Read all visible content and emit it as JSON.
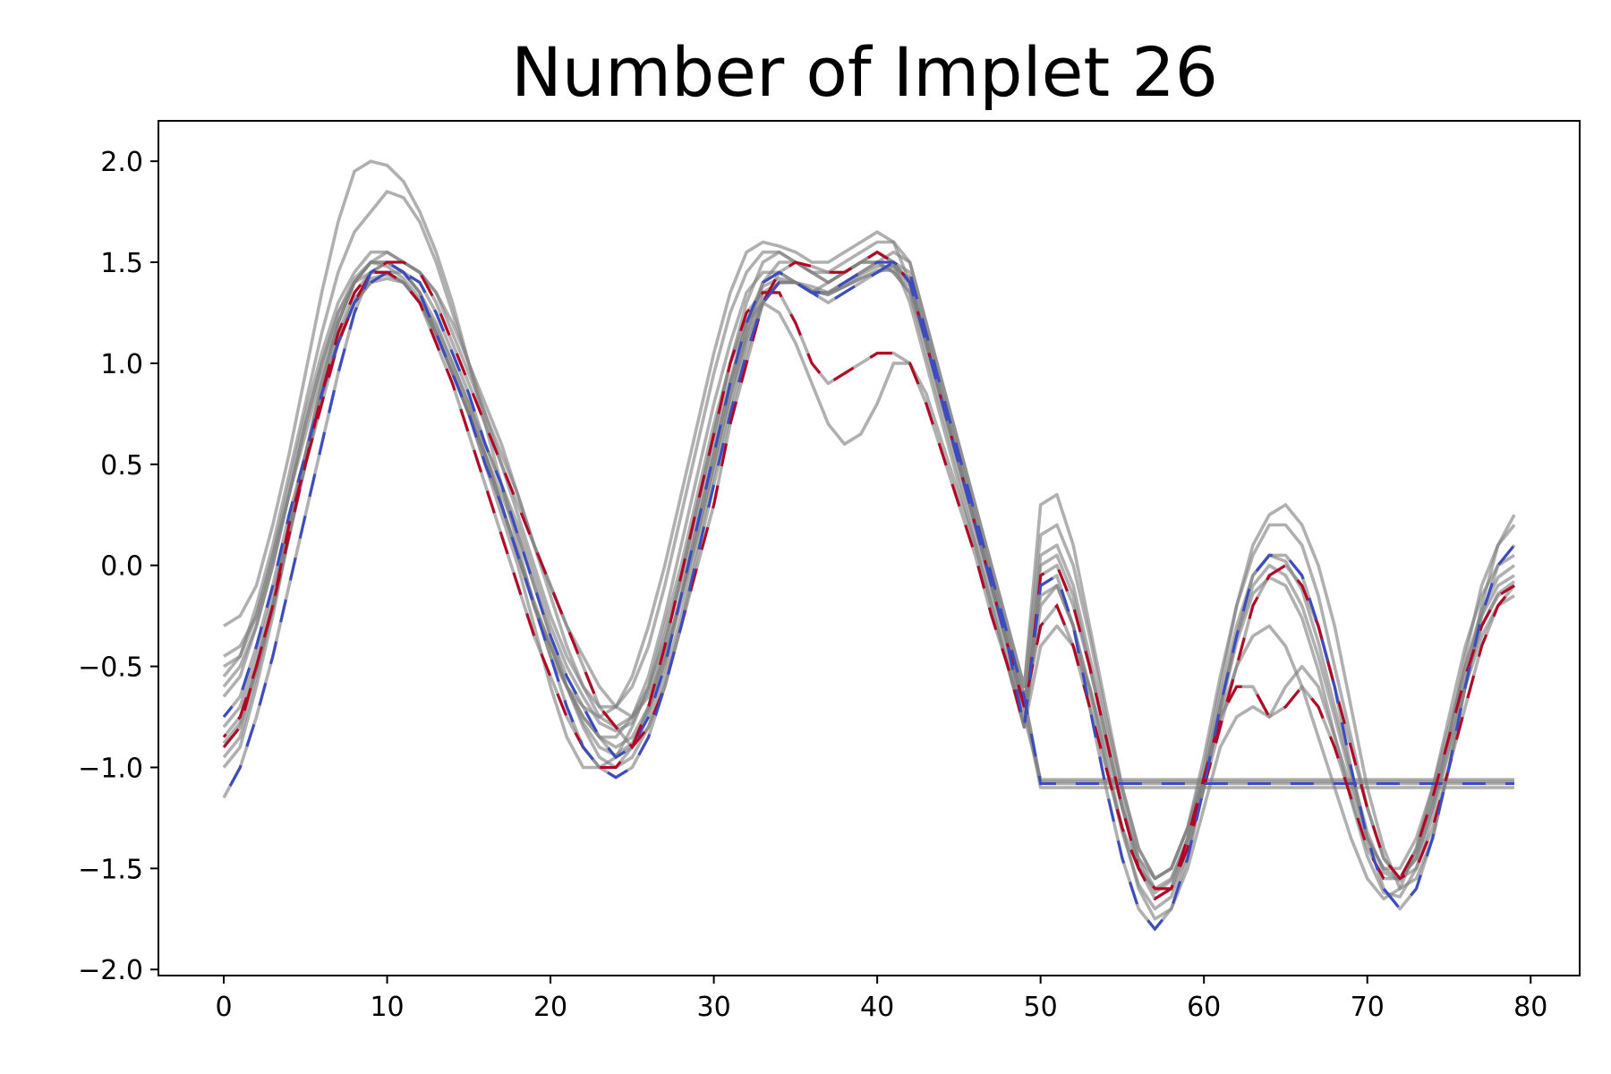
{
  "chart_data": {
    "type": "line",
    "title": "Number of Implet 26",
    "xlabel": "",
    "ylabel": "",
    "xlim": [
      -4,
      83
    ],
    "ylim": [
      -2.03,
      2.2
    ],
    "xticks": [
      0,
      10,
      20,
      30,
      40,
      50,
      60,
      70,
      80
    ],
    "yticks": [
      2.0,
      1.5,
      1.0,
      0.5,
      0.0,
      -0.5,
      -1.0,
      -1.5,
      -2.0
    ],
    "xtick_labels": [
      "0",
      "10",
      "20",
      "30",
      "40",
      "50",
      "60",
      "70",
      "80"
    ],
    "ytick_labels": [
      "2.0",
      "1.5",
      "1.0",
      "0.5",
      "0.0",
      "−0.5",
      "−1.0",
      "−1.5",
      "−2.0"
    ],
    "grid": false,
    "legend": "none",
    "series_color": "#808080",
    "highlight_colors": [
      "#b40426",
      "#3b4cc0",
      "#e7745b",
      "#8db0fe"
    ],
    "series": [
      {
        "values": [
          -0.9,
          -0.8,
          -0.5,
          -0.2,
          0.2,
          0.5,
          0.8,
          1.1,
          1.3,
          1.45,
          1.5,
          1.5,
          1.45,
          1.3,
          1.1,
          0.9,
          0.7,
          0.5,
          0.3,
          0.1,
          -0.1,
          -0.3,
          -0.5,
          -0.7,
          -0.8,
          -0.9,
          -0.8,
          -0.6,
          -0.3,
          0.0,
          0.3,
          0.7,
          1.0,
          1.3,
          1.45,
          1.5,
          1.48,
          1.45,
          1.45,
          1.5,
          1.55,
          1.5,
          1.4,
          1.1,
          0.8,
          0.5,
          0.2,
          -0.1,
          -0.4,
          -0.7,
          -0.3,
          -0.2,
          -0.4,
          -0.7,
          -1.0,
          -1.3,
          -1.5,
          -1.6,
          -1.6,
          -1.4,
          -1.1,
          -0.8,
          -0.5,
          -0.2,
          -0.05,
          0.0,
          -0.1,
          -0.3,
          -0.6,
          -0.9,
          -1.2,
          -1.45,
          -1.55,
          -1.5,
          -1.3,
          -1.0,
          -0.7,
          -0.4,
          -0.2,
          -0.1
        ]
      },
      {
        "values": [
          -0.75,
          -0.65,
          -0.4,
          -0.1,
          0.25,
          0.55,
          0.85,
          1.1,
          1.3,
          1.4,
          1.45,
          1.45,
          1.4,
          1.25,
          1.05,
          0.85,
          0.6,
          0.4,
          0.15,
          -0.1,
          -0.35,
          -0.55,
          -0.7,
          -0.85,
          -0.95,
          -0.9,
          -0.75,
          -0.5,
          -0.15,
          0.2,
          0.55,
          0.9,
          1.2,
          1.4,
          1.45,
          1.4,
          1.35,
          1.35,
          1.4,
          1.45,
          1.5,
          1.5,
          1.45,
          1.15,
          0.85,
          0.55,
          0.25,
          -0.05,
          -0.35,
          -0.65,
          -1.08,
          -1.08,
          -1.08,
          -1.08,
          -1.08,
          -1.08,
          -1.08,
          -1.08,
          -1.08,
          -1.08,
          -1.08,
          -1.08,
          -1.08,
          -1.08,
          -1.08,
          -1.08,
          -1.08,
          -1.08,
          -1.08,
          -1.08,
          -1.08,
          -1.08,
          -1.08,
          -1.08,
          -1.08,
          -1.08,
          -1.08,
          -1.08,
          -1.08,
          -1.08
        ]
      },
      {
        "values": [
          -0.5,
          -0.45,
          -0.25,
          0.05,
          0.35,
          0.65,
          0.95,
          1.2,
          1.4,
          1.5,
          1.55,
          1.5,
          1.45,
          1.35,
          1.15,
          0.95,
          0.75,
          0.55,
          0.35,
          0.1,
          -0.1,
          -0.3,
          -0.45,
          -0.6,
          -0.7,
          -0.75,
          -0.65,
          -0.45,
          -0.15,
          0.15,
          0.5,
          0.85,
          1.15,
          1.4,
          1.5,
          1.5,
          1.45,
          1.4,
          1.45,
          1.5,
          1.5,
          1.55,
          1.5,
          1.2,
          0.9,
          0.6,
          0.3,
          0.0,
          -0.3,
          -0.6,
          0.3,
          0.35,
          0.1,
          -0.3,
          -0.7,
          -1.1,
          -1.4,
          -1.55,
          -1.5,
          -1.3,
          -1.0,
          -0.6,
          -0.2,
          0.1,
          0.25,
          0.3,
          0.2,
          0.0,
          -0.3,
          -0.7,
          -1.1,
          -1.4,
          -1.6,
          -1.55,
          -1.35,
          -1.0,
          -0.6,
          -0.2,
          0.1,
          0.25
        ]
      },
      {
        "values": [
          -1.15,
          -1.0,
          -0.75,
          -0.45,
          -0.1,
          0.25,
          0.6,
          0.95,
          1.25,
          1.45,
          1.5,
          1.45,
          1.35,
          1.15,
          0.95,
          0.75,
          0.5,
          0.3,
          0.05,
          -0.2,
          -0.45,
          -0.7,
          -0.9,
          -1.0,
          -1.05,
          -1.0,
          -0.85,
          -0.6,
          -0.3,
          0.05,
          0.4,
          0.75,
          1.05,
          1.3,
          1.4,
          1.4,
          1.35,
          1.3,
          1.35,
          1.4,
          1.45,
          1.5,
          1.4,
          1.1,
          0.8,
          0.5,
          0.2,
          -0.1,
          -0.4,
          -0.8,
          -0.1,
          -0.05,
          -0.3,
          -0.7,
          -1.1,
          -1.45,
          -1.7,
          -1.8,
          -1.7,
          -1.45,
          -1.1,
          -0.7,
          -0.35,
          -0.05,
          0.05,
          0.05,
          -0.05,
          -0.3,
          -0.6,
          -1.0,
          -1.35,
          -1.6,
          -1.7,
          -1.6,
          -1.35,
          -1.0,
          -0.6,
          -0.25,
          0.0,
          0.1
        ]
      },
      {
        "values": [
          -0.3,
          -0.25,
          -0.1,
          0.2,
          0.55,
          0.95,
          1.35,
          1.7,
          1.95,
          2.0,
          1.98,
          1.9,
          1.75,
          1.55,
          1.3,
          1.0,
          0.7,
          0.4,
          0.1,
          -0.2,
          -0.45,
          -0.6,
          -0.7,
          -0.75,
          -0.7,
          -0.55,
          -0.3,
          0.0,
          0.35,
          0.7,
          1.05,
          1.35,
          1.55,
          1.6,
          1.58,
          1.55,
          1.5,
          1.5,
          1.55,
          1.6,
          1.65,
          1.6,
          1.4,
          1.1,
          0.8,
          0.5,
          0.2,
          -0.1,
          -0.4,
          -0.7,
          -1.1,
          -1.1,
          -1.1,
          -1.1,
          -1.1,
          -1.1,
          -1.1,
          -1.1,
          -1.1,
          -1.1,
          -1.1,
          -1.1,
          -1.1,
          -1.1,
          -1.1,
          -1.1,
          -1.1,
          -1.1,
          -1.1,
          -1.1,
          -1.1,
          -1.1,
          -1.1,
          -1.1,
          -1.1,
          -1.1,
          -1.1,
          -1.1,
          -1.1,
          -1.1
        ]
      },
      {
        "values": [
          -0.55,
          -0.45,
          -0.2,
          0.1,
          0.45,
          0.8,
          1.15,
          1.45,
          1.65,
          1.75,
          1.85,
          1.82,
          1.7,
          1.5,
          1.25,
          1.0,
          0.75,
          0.5,
          0.25,
          0.0,
          -0.25,
          -0.45,
          -0.6,
          -0.7,
          -0.7,
          -0.6,
          -0.4,
          -0.1,
          0.25,
          0.6,
          0.95,
          1.25,
          1.45,
          1.55,
          1.55,
          1.5,
          1.45,
          1.4,
          1.45,
          1.5,
          1.55,
          1.5,
          1.3,
          1.0,
          0.7,
          0.4,
          0.1,
          -0.2,
          -0.5,
          -0.8,
          -0.4,
          -0.3,
          -0.4,
          -0.6,
          -0.9,
          -1.2,
          -1.45,
          -1.55,
          -1.5,
          -1.3,
          -1.05,
          -0.75,
          -0.5,
          -0.35,
          -0.3,
          -0.4,
          -0.6,
          -0.85,
          -1.1,
          -1.35,
          -1.55,
          -1.65,
          -1.6,
          -1.4,
          -1.1,
          -0.75,
          -0.4,
          -0.15,
          0.0,
          0.05
        ]
      },
      {
        "values": [
          -0.85,
          -0.75,
          -0.5,
          -0.2,
          0.15,
          0.5,
          0.85,
          1.15,
          1.35,
          1.45,
          1.45,
          1.4,
          1.3,
          1.1,
          0.9,
          0.65,
          0.4,
          0.15,
          -0.1,
          -0.35,
          -0.55,
          -0.75,
          -0.9,
          -1.0,
          -1.0,
          -0.9,
          -0.7,
          -0.4,
          -0.05,
          0.3,
          0.65,
          1.0,
          1.25,
          1.35,
          1.35,
          1.2,
          1.0,
          0.9,
          0.95,
          1.0,
          1.05,
          1.05,
          1.0,
          0.8,
          0.55,
          0.3,
          0.05,
          -0.25,
          -0.5,
          -0.8,
          -0.05,
          0.0,
          -0.2,
          -0.5,
          -0.85,
          -1.2,
          -1.5,
          -1.65,
          -1.6,
          -1.35,
          -1.05,
          -0.75,
          -0.6,
          -0.6,
          -0.75,
          -0.7,
          -0.6,
          -0.7,
          -0.9,
          -1.15,
          -1.4,
          -1.55,
          -1.55,
          -1.4,
          -1.15,
          -0.85,
          -0.55,
          -0.3,
          -0.15,
          -0.1
        ]
      },
      {
        "values": [
          -0.95,
          -0.85,
          -0.55,
          -0.2,
          0.2,
          0.55,
          0.9,
          1.2,
          1.4,
          1.5,
          1.5,
          1.45,
          1.35,
          1.15,
          0.95,
          0.75,
          0.5,
          0.25,
          0.0,
          -0.3,
          -0.6,
          -0.85,
          -1.0,
          -1.0,
          -0.95,
          -0.8,
          -0.6,
          -0.3,
          0.0,
          0.35,
          0.7,
          1.0,
          1.2,
          1.3,
          1.25,
          1.1,
          0.9,
          0.7,
          0.6,
          0.65,
          0.8,
          1.0,
          1.0,
          0.85,
          0.6,
          0.35,
          0.1,
          -0.2,
          -0.5,
          -0.8,
          -0.2,
          -0.1,
          -0.3,
          -0.6,
          -0.95,
          -1.3,
          -1.6,
          -1.75,
          -1.7,
          -1.5,
          -1.2,
          -0.9,
          -0.75,
          -0.7,
          -0.75,
          -0.6,
          -0.5,
          -0.6,
          -0.85,
          -1.1,
          -1.35,
          -1.5,
          -1.55,
          -1.45,
          -1.2,
          -0.9,
          -0.6,
          -0.35,
          -0.2,
          -0.15
        ]
      },
      {
        "values": [
          -0.65,
          -0.55,
          -0.3,
          0.0,
          0.35,
          0.7,
          1.0,
          1.25,
          1.4,
          1.45,
          1.45,
          1.4,
          1.3,
          1.15,
          0.95,
          0.75,
          0.55,
          0.3,
          0.05,
          -0.2,
          -0.4,
          -0.6,
          -0.75,
          -0.85,
          -0.9,
          -0.85,
          -0.7,
          -0.45,
          -0.15,
          0.2,
          0.55,
          0.9,
          1.15,
          1.35,
          1.4,
          1.4,
          1.35,
          1.35,
          1.4,
          1.45,
          1.5,
          1.45,
          1.35,
          1.1,
          0.8,
          0.5,
          0.2,
          -0.1,
          -0.4,
          -0.7,
          0.05,
          0.1,
          -0.1,
          -0.45,
          -0.8,
          -1.15,
          -1.45,
          -1.6,
          -1.55,
          -1.35,
          -1.05,
          -0.7,
          -0.35,
          -0.1,
          0.0,
          -0.05,
          -0.2,
          -0.45,
          -0.75,
          -1.05,
          -1.35,
          -1.5,
          -1.5,
          -1.35,
          -1.1,
          -0.8,
          -0.5,
          -0.25,
          -0.1,
          -0.05
        ]
      },
      {
        "values": [
          -1.0,
          -0.9,
          -0.6,
          -0.25,
          0.15,
          0.5,
          0.85,
          1.1,
          1.3,
          1.4,
          1.42,
          1.4,
          1.3,
          1.15,
          0.95,
          0.75,
          0.55,
          0.35,
          0.15,
          -0.1,
          -0.35,
          -0.6,
          -0.8,
          -0.95,
          -1.0,
          -0.95,
          -0.8,
          -0.55,
          -0.25,
          0.1,
          0.45,
          0.8,
          1.1,
          1.3,
          1.4,
          1.4,
          1.38,
          1.35,
          1.38,
          1.42,
          1.45,
          1.48,
          1.42,
          1.15,
          0.85,
          0.55,
          0.25,
          -0.05,
          -0.35,
          -0.65,
          -1.07,
          -1.07,
          -1.07,
          -1.07,
          -1.07,
          -1.07,
          -1.07,
          -1.07,
          -1.07,
          -1.07,
          -1.07,
          -1.07,
          -1.07,
          -1.07,
          -1.07,
          -1.07,
          -1.07,
          -1.07,
          -1.07,
          -1.07,
          -1.07,
          -1.07,
          -1.07,
          -1.07,
          -1.07,
          -1.07,
          -1.07,
          -1.07,
          -1.07,
          -1.07
        ]
      },
      {
        "values": [
          -0.45,
          -0.4,
          -0.25,
          0.05,
          0.4,
          0.75,
          1.05,
          1.3,
          1.45,
          1.55,
          1.55,
          1.5,
          1.45,
          1.35,
          1.2,
          1.0,
          0.8,
          0.6,
          0.35,
          0.1,
          -0.15,
          -0.4,
          -0.6,
          -0.75,
          -0.8,
          -0.75,
          -0.6,
          -0.35,
          -0.05,
          0.3,
          0.65,
          1.0,
          1.3,
          1.5,
          1.55,
          1.5,
          1.45,
          1.45,
          1.5,
          1.55,
          1.6,
          1.6,
          1.5,
          1.2,
          0.9,
          0.6,
          0.3,
          0.0,
          -0.3,
          -0.6,
          0.15,
          0.2,
          0.0,
          -0.35,
          -0.75,
          -1.1,
          -1.4,
          -1.55,
          -1.5,
          -1.3,
          -0.95,
          -0.55,
          -0.2,
          0.05,
          0.2,
          0.2,
          0.1,
          -0.15,
          -0.5,
          -0.85,
          -1.2,
          -1.45,
          -1.55,
          -1.45,
          -1.2,
          -0.85,
          -0.45,
          -0.1,
          0.1,
          0.2
        ]
      },
      {
        "values": [
          -0.8,
          -0.7,
          -0.45,
          -0.15,
          0.2,
          0.55,
          0.9,
          1.2,
          1.4,
          1.5,
          1.5,
          1.45,
          1.35,
          1.2,
          1.0,
          0.8,
          0.55,
          0.3,
          0.05,
          -0.2,
          -0.4,
          -0.6,
          -0.75,
          -0.85,
          -0.85,
          -0.75,
          -0.55,
          -0.25,
          0.1,
          0.45,
          0.8,
          1.1,
          1.35,
          1.45,
          1.45,
          1.4,
          1.35,
          1.4,
          1.45,
          1.5,
          1.5,
          1.45,
          1.35,
          1.05,
          0.75,
          0.45,
          0.15,
          -0.15,
          -0.45,
          -0.75,
          -1.06,
          -1.06,
          -1.06,
          -1.06,
          -1.06,
          -1.06,
          -1.06,
          -1.06,
          -1.06,
          -1.06,
          -1.06,
          -1.06,
          -1.06,
          -1.06,
          -1.06,
          -1.06,
          -1.06,
          -1.06,
          -1.06,
          -1.06,
          -1.06,
          -1.06,
          -1.06,
          -1.06,
          -1.06,
          -1.06,
          -1.06,
          -1.06,
          -1.06,
          -1.06
        ]
      },
      {
        "values": [
          -0.6,
          -0.5,
          -0.3,
          0.0,
          0.35,
          0.7,
          1.0,
          1.25,
          1.42,
          1.5,
          1.48,
          1.42,
          1.32,
          1.18,
          1.0,
          0.8,
          0.6,
          0.4,
          0.2,
          -0.05,
          -0.3,
          -0.5,
          -0.65,
          -0.78,
          -0.82,
          -0.78,
          -0.62,
          -0.38,
          -0.08,
          0.25,
          0.6,
          0.92,
          1.2,
          1.38,
          1.42,
          1.4,
          1.36,
          1.34,
          1.38,
          1.42,
          1.46,
          1.46,
          1.38,
          1.1,
          0.8,
          0.5,
          0.2,
          -0.1,
          -0.4,
          -0.7,
          0.0,
          0.05,
          -0.15,
          -0.5,
          -0.85,
          -1.2,
          -1.48,
          -1.62,
          -1.56,
          -1.36,
          -1.04,
          -0.66,
          -0.3,
          -0.05,
          0.05,
          0.02,
          -0.12,
          -0.38,
          -0.7,
          -1.02,
          -1.32,
          -1.52,
          -1.56,
          -1.42,
          -1.16,
          -0.84,
          -0.5,
          -0.22,
          -0.06,
          0.0
        ]
      },
      {
        "values": [
          -0.88,
          -0.78,
          -0.52,
          -0.22,
          0.14,
          0.5,
          0.84,
          1.12,
          1.32,
          1.42,
          1.44,
          1.4,
          1.3,
          1.14,
          0.96,
          0.76,
          0.54,
          0.3,
          0.06,
          -0.18,
          -0.4,
          -0.6,
          -0.78,
          -0.9,
          -0.94,
          -0.88,
          -0.72,
          -0.48,
          -0.18,
          0.16,
          0.5,
          0.84,
          1.12,
          1.32,
          1.4,
          1.4,
          1.36,
          1.34,
          1.38,
          1.44,
          1.48,
          1.48,
          1.4,
          1.12,
          0.82,
          0.52,
          0.22,
          -0.08,
          -0.38,
          -0.68,
          -0.15,
          -0.1,
          -0.3,
          -0.62,
          -0.98,
          -1.32,
          -1.58,
          -1.7,
          -1.64,
          -1.42,
          -1.1,
          -0.72,
          -0.38,
          -0.14,
          -0.06,
          -0.1,
          -0.26,
          -0.52,
          -0.84,
          -1.16,
          -1.44,
          -1.62,
          -1.64,
          -1.5,
          -1.24,
          -0.92,
          -0.58,
          -0.3,
          -0.14,
          -0.08
        ]
      }
    ]
  }
}
